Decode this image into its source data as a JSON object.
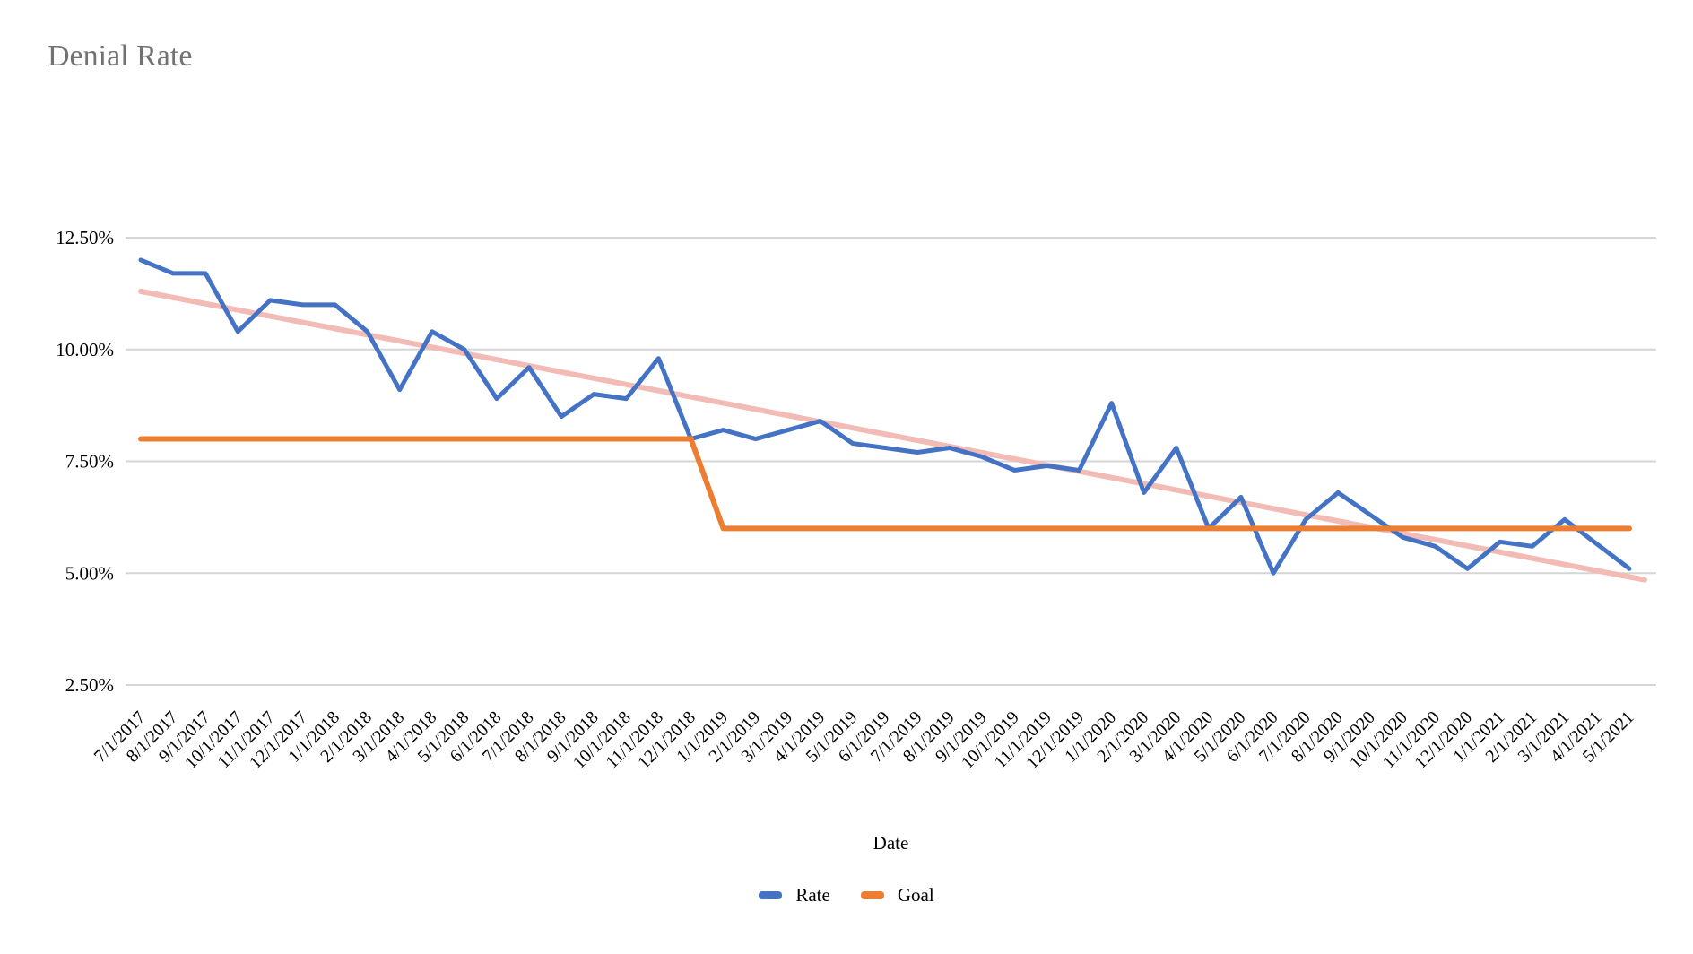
{
  "title": "Denial Rate",
  "colors": {
    "rate": "#4472C4",
    "goal": "#ED7D31",
    "trend": "#F2BBB6",
    "grid": "#D6D6D6",
    "title_text": "#757171",
    "axis_text": "#000000",
    "background": "#FFFFFF"
  },
  "axis": {
    "x_title": "Date"
  },
  "legend": {
    "rate_label": "Rate",
    "goal_label": "Goal"
  },
  "chart_data": {
    "type": "line",
    "title": "Denial Rate",
    "xlabel": "Date",
    "ylabel": "",
    "grid": "horizontal",
    "legend_position": "bottom",
    "ylim": [
      2.5,
      12.5
    ],
    "yticks": [
      "12.50%",
      "10.00%",
      "7.50%",
      "5.00%",
      "2.50%"
    ],
    "ytick_values": [
      12.5,
      10.0,
      7.5,
      5.0,
      2.5
    ],
    "x": [
      "7/1/2017",
      "8/1/2017",
      "9/1/2017",
      "10/1/2017",
      "11/1/2017",
      "12/1/2017",
      "1/1/2018",
      "2/1/2018",
      "3/1/2018",
      "4/1/2018",
      "5/1/2018",
      "6/1/2018",
      "7/1/2018",
      "8/1/2018",
      "9/1/2018",
      "10/1/2018",
      "11/1/2018",
      "12/1/2018",
      "1/1/2019",
      "2/1/2019",
      "3/1/2019",
      "4/1/2019",
      "5/1/2019",
      "6/1/2019",
      "7/1/2019",
      "8/1/2019",
      "9/1/2019",
      "10/1/2019",
      "11/1/2019",
      "12/1/2019",
      "1/1/2020",
      "2/1/2020",
      "3/1/2020",
      "4/1/2020",
      "5/1/2020",
      "6/1/2020",
      "7/1/2020",
      "8/1/2020",
      "9/1/2020",
      "10/1/2020",
      "11/1/2020",
      "12/1/2020",
      "1/1/2021",
      "2/1/2021",
      "3/1/2021",
      "4/1/2021",
      "5/1/2021"
    ],
    "series": [
      {
        "name": "Rate",
        "color": "#4472C4",
        "values": [
          12.0,
          11.7,
          11.7,
          10.4,
          11.1,
          11.0,
          11.0,
          10.4,
          9.1,
          10.4,
          10.0,
          8.9,
          9.6,
          8.5,
          9.0,
          8.9,
          9.8,
          8.0,
          8.2,
          8.0,
          8.2,
          8.4,
          7.9,
          7.8,
          7.7,
          7.8,
          7.6,
          7.3,
          7.4,
          7.3,
          8.8,
          6.8,
          7.8,
          6.0,
          6.7,
          5.0,
          6.2,
          6.8,
          6.3,
          5.8,
          5.6,
          5.1,
          5.7,
          5.6,
          6.2,
          5.65,
          5.1
        ]
      },
      {
        "name": "Goal",
        "color": "#ED7D31",
        "values": [
          8.0,
          8.0,
          8.0,
          8.0,
          8.0,
          8.0,
          8.0,
          8.0,
          8.0,
          8.0,
          8.0,
          8.0,
          8.0,
          8.0,
          8.0,
          8.0,
          8.0,
          8.0,
          6.0,
          6.0,
          6.0,
          6.0,
          6.0,
          6.0,
          6.0,
          6.0,
          6.0,
          6.0,
          6.0,
          6.0,
          6.0,
          6.0,
          6.0,
          6.0,
          6.0,
          6.0,
          6.0,
          6.0,
          6.0,
          6.0,
          6.0,
          6.0,
          6.0,
          6.0,
          6.0,
          6.0,
          6.0
        ]
      }
    ],
    "trendline": {
      "name": "Linear trend of Rate",
      "color": "#F2BBB6",
      "start_value": 11.3,
      "end_value": 4.85
    }
  }
}
